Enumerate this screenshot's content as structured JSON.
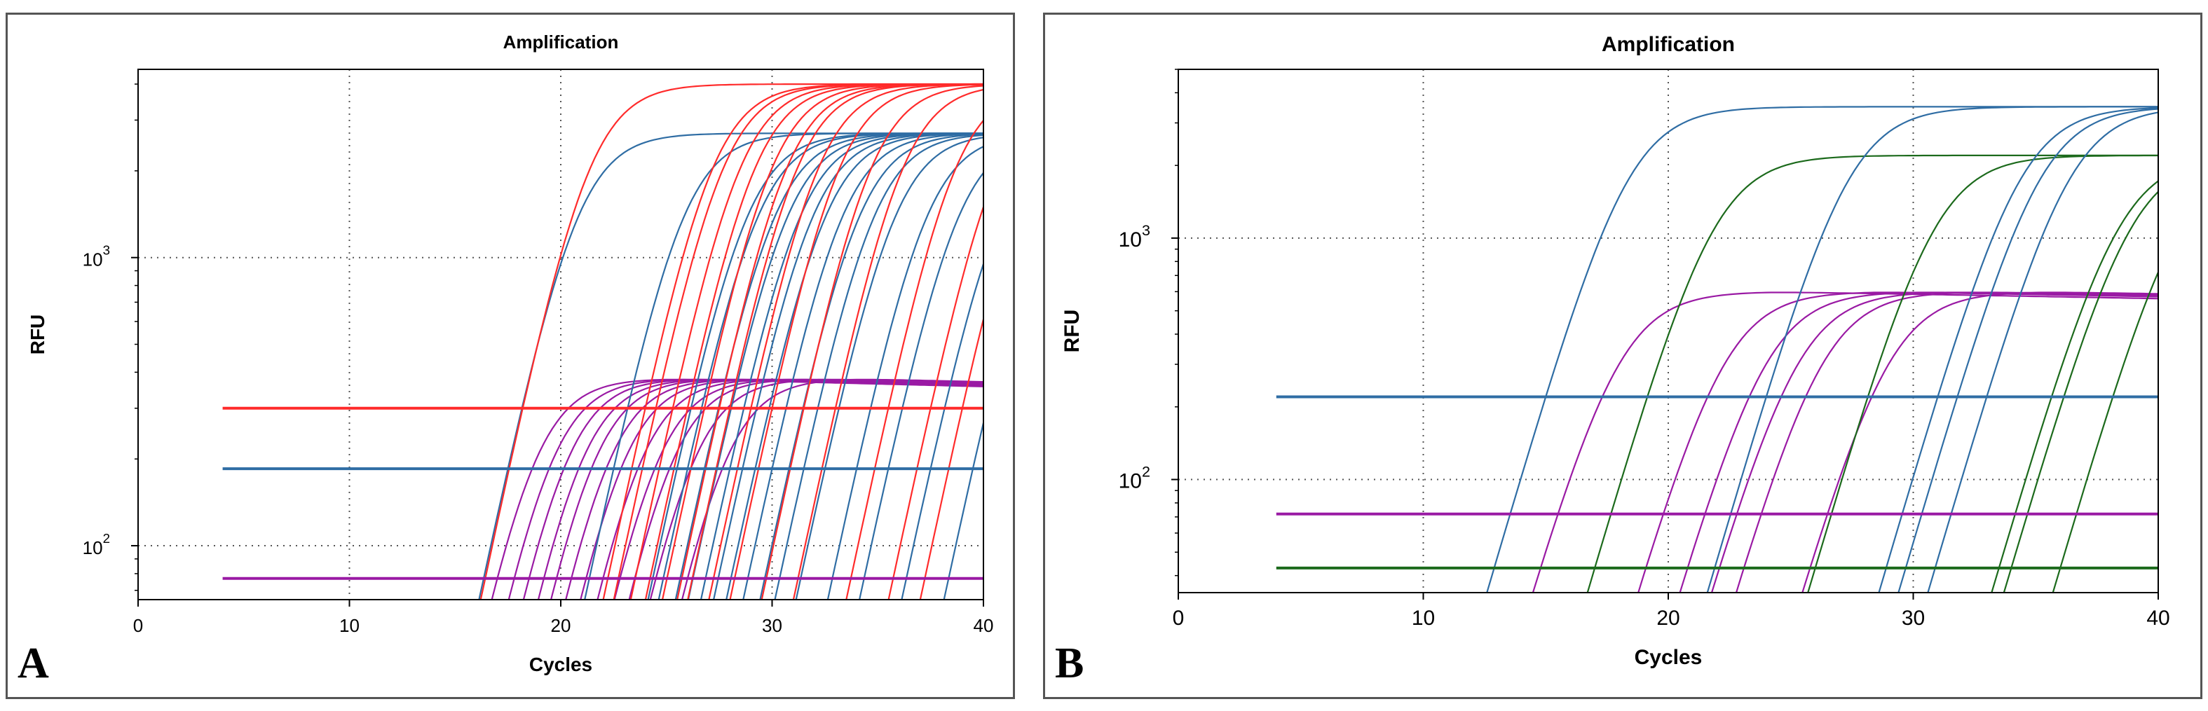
{
  "colors": {
    "red": "#ff2b2b",
    "blue": "#2f6da4",
    "purple": "#9a1aa4",
    "green": "#1c6a1c",
    "grid": "#555555"
  },
  "chart_data": [
    {
      "panel_label": "A",
      "type": "line",
      "title": "Amplification",
      "xlabel": "Cycles",
      "ylabel": "RFU",
      "y_scale": "log",
      "xlim": [
        0,
        40
      ],
      "ylim": [
        65,
        4500
      ],
      "xticks": [
        "0",
        "10",
        "20",
        "30",
        "40"
      ],
      "yticks": [
        {
          "value": 100,
          "base": "10",
          "exp": "2"
        },
        {
          "value": 1000,
          "base": "10",
          "exp": "3"
        }
      ],
      "grid": true,
      "thresholds": [
        {
          "color": "red",
          "value": 300,
          "x_start": 4
        },
        {
          "color": "blue",
          "value": 185,
          "x_start": 4
        },
        {
          "color": "purple",
          "value": 77,
          "x_start": 4
        }
      ],
      "curves": {
        "red": {
          "plateau": 4000,
          "ct": [
            18.2,
            24.0,
            24.5,
            25.3,
            26.0,
            26.8,
            27.5,
            28.0,
            29.0,
            30.0,
            31.5,
            33.0,
            35.5,
            37.5,
            39.0
          ]
        },
        "blue": {
          "plateau": 2700,
          "ct": [
            17.5,
            22.5,
            25.5,
            26.0,
            26.8,
            27.4,
            28.0,
            28.6,
            29.2,
            30.0,
            30.8,
            31.5,
            32.5,
            34.0,
            35.5,
            37.5,
            39.5
          ]
        },
        "purple": {
          "plateau": 380,
          "ct": [
            17.0,
            17.8,
            18.5,
            19.2,
            19.8,
            20.5,
            21.2,
            22.0,
            22.8,
            23.5,
            24.5,
            26.0
          ]
        }
      }
    },
    {
      "panel_label": "B",
      "type": "line",
      "title": "Amplification",
      "xlabel": "Cycles",
      "ylabel": "RFU",
      "y_scale": "log",
      "xlim": [
        0,
        40
      ],
      "ylim": [
        34,
        5000
      ],
      "xticks": [
        "0",
        "10",
        "20",
        "30",
        "40"
      ],
      "yticks": [
        {
          "value": 100,
          "base": "10",
          "exp": "2"
        },
        {
          "value": 1000,
          "base": "10",
          "exp": "3"
        }
      ],
      "grid": true,
      "thresholds": [
        {
          "color": "blue",
          "value": 220,
          "x_start": 4
        },
        {
          "color": "purple",
          "value": 72,
          "x_start": 4
        },
        {
          "color": "green",
          "value": 43,
          "x_start": 4
        }
      ],
      "curves": {
        "blue": {
          "plateau": 3500,
          "ct": [
            15.0,
            24.0,
            31.0,
            31.8,
            33.0
          ]
        },
        "green": {
          "plateau": 2200,
          "ct": [
            17.0,
            26.0,
            33.5,
            34.0,
            36.0
          ]
        },
        "purple": {
          "plateau": 600,
          "ct": [
            15.5,
            19.8,
            21.5,
            22.8,
            23.8,
            26.5
          ]
        }
      }
    }
  ]
}
